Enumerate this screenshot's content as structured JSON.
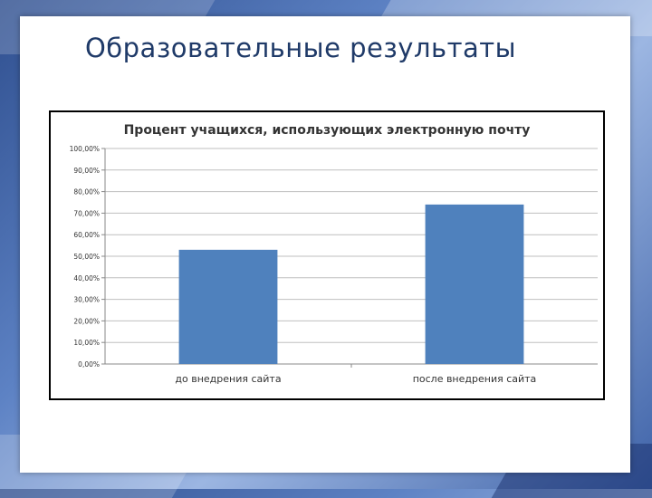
{
  "slide": {
    "title": "Образовательные результаты"
  },
  "chart_data": {
    "type": "bar",
    "title": "Процент учащихся, использующих электронную почту",
    "categories": [
      "до внедрения сайта",
      "после внедрения сайта"
    ],
    "values": [
      53,
      74
    ],
    "ylim": [
      0,
      100
    ],
    "y_ticks": [
      "0,00%",
      "10,00%",
      "20,00%",
      "30,00%",
      "40,00%",
      "50,00%",
      "60,00%",
      "70,00%",
      "80,00%",
      "90,00%",
      "100,00%"
    ],
    "xlabel": "",
    "ylabel": "",
    "grid": true,
    "legend": "none",
    "bar_color": "#4f81bd",
    "grid_color": "#bfbfbf"
  }
}
